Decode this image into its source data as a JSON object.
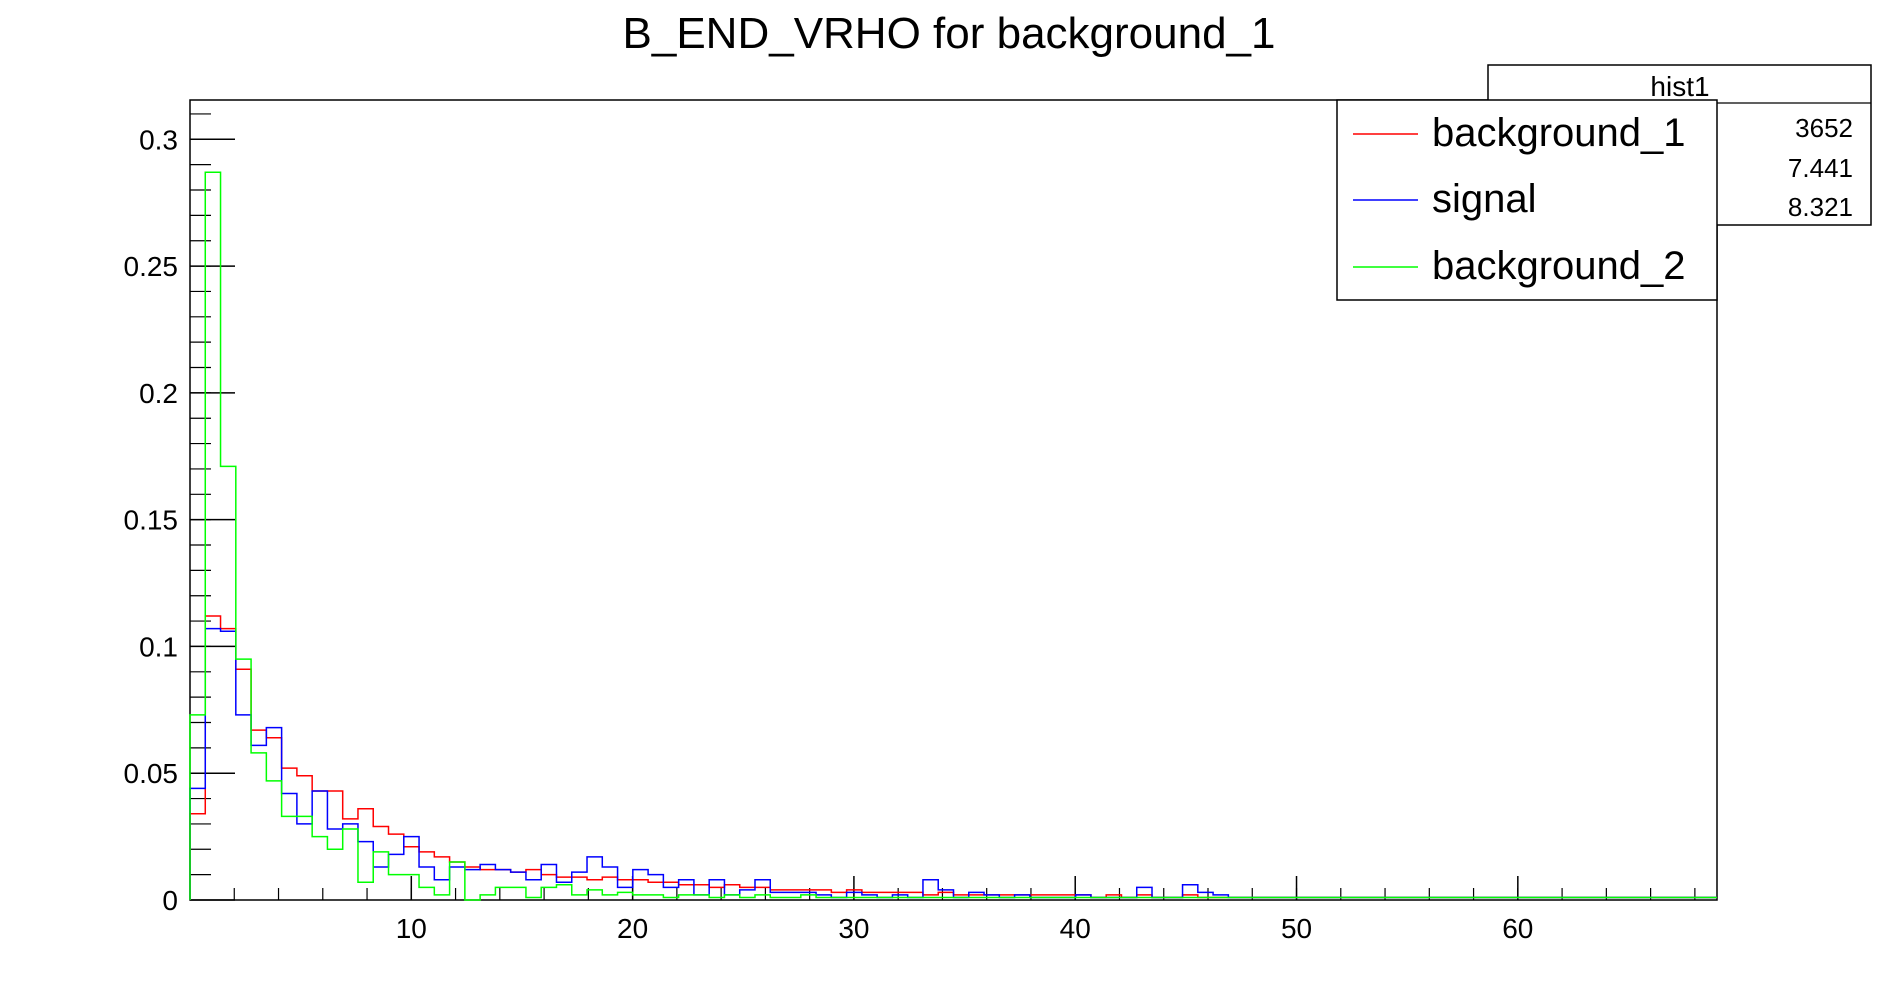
{
  "chart_data": {
    "type": "histogram",
    "title": "B_END_VRHO for background_1",
    "xlabel": "",
    "ylabel": "",
    "xlim": [
      0,
      69
    ],
    "ylim": [
      0,
      0.3155
    ],
    "x_ticks": [
      10,
      20,
      30,
      40,
      50,
      60
    ],
    "y_ticks": [
      0,
      0.05,
      0.1,
      0.15,
      0.2,
      0.25,
      0.3
    ],
    "bin_width": 0.69,
    "grid": false,
    "legend_position": "top-right",
    "colors": {
      "background_1": "#ff0000",
      "signal": "#0000ff",
      "background_2": "#00ff00"
    },
    "stats_box": {
      "title": "hist1",
      "values": [
        "3652",
        "7.441",
        "8.321"
      ]
    },
    "series": [
      {
        "name": "background_1",
        "color": "#ff0000",
        "values": [
          0.034,
          0.112,
          0.107,
          0.091,
          0.067,
          0.064,
          0.052,
          0.049,
          0.043,
          0.043,
          0.032,
          0.036,
          0.029,
          0.026,
          0.021,
          0.019,
          0.017,
          0.015,
          0.013,
          0.012,
          0.012,
          0.011,
          0.012,
          0.01,
          0.009,
          0.009,
          0.008,
          0.009,
          0.008,
          0.008,
          0.007,
          0.007,
          0.006,
          0.006,
          0.005,
          0.006,
          0.005,
          0.005,
          0.004,
          0.004,
          0.004,
          0.004,
          0.003,
          0.004,
          0.003,
          0.003,
          0.003,
          0.003,
          0.002,
          0.003,
          0.002,
          0.002,
          0.002,
          0.002,
          0.002,
          0.002,
          0.002,
          0.002,
          0.002,
          0.001,
          0.002,
          0.001,
          0.002,
          0.001,
          0.001,
          0.002,
          0.001,
          0.001,
          0.001,
          0.001,
          0.001,
          0.001,
          0.001,
          0.001,
          0.001,
          0.001,
          0.001,
          0.001,
          0.001,
          0.001,
          0.001,
          0.001,
          0.001,
          0.001,
          0.001,
          0.001,
          0.001,
          0.001,
          0.001,
          0.001,
          0.001,
          0.001,
          0.001,
          0.001,
          0.001,
          0.001,
          0.001,
          0.001,
          0.001,
          0.001
        ]
      },
      {
        "name": "signal",
        "color": "#0000ff",
        "values": [
          0.044,
          0.107,
          0.106,
          0.073,
          0.061,
          0.068,
          0.042,
          0.03,
          0.043,
          0.028,
          0.03,
          0.023,
          0.013,
          0.018,
          0.025,
          0.013,
          0.008,
          0.013,
          0.012,
          0.014,
          0.012,
          0.011,
          0.008,
          0.014,
          0.007,
          0.011,
          0.017,
          0.013,
          0.005,
          0.012,
          0.01,
          0.005,
          0.008,
          0.002,
          0.008,
          0.002,
          0.004,
          0.008,
          0.003,
          0.003,
          0.003,
          0.002,
          0.001,
          0.003,
          0.002,
          0.001,
          0.002,
          0.001,
          0.008,
          0.004,
          0.001,
          0.003,
          0.002,
          0.001,
          0.002,
          0.001,
          0.001,
          0.001,
          0.002,
          0.001,
          0.001,
          0.001,
          0.005,
          0.001,
          0.001,
          0.006,
          0.003,
          0.002,
          0.001,
          0.001,
          0.001,
          0.001,
          0.001,
          0.001,
          0.001,
          0.001,
          0.001,
          0.001,
          0.001,
          0.001,
          0.001,
          0.001,
          0.001,
          0.001,
          0.001,
          0.001,
          0.001,
          0.001,
          0.001,
          0.001,
          0.001,
          0.001,
          0.001,
          0.001,
          0.001,
          0.001,
          0.001,
          0.001,
          0.001,
          0.001
        ]
      },
      {
        "name": "background_2",
        "color": "#00ff00",
        "values": [
          0.073,
          0.287,
          0.171,
          0.095,
          0.058,
          0.047,
          0.033,
          0.033,
          0.025,
          0.02,
          0.028,
          0.007,
          0.019,
          0.01,
          0.01,
          0.005,
          0.002,
          0.015,
          0.0,
          0.002,
          0.005,
          0.005,
          0.001,
          0.005,
          0.006,
          0.002,
          0.004,
          0.002,
          0.003,
          0.002,
          0.002,
          0.001,
          0.002,
          0.002,
          0.001,
          0.002,
          0.001,
          0.002,
          0.001,
          0.001,
          0.002,
          0.001,
          0.001,
          0.001,
          0.001,
          0.001,
          0.001,
          0.001,
          0.001,
          0.001,
          0.001,
          0.001,
          0.001,
          0.001,
          0.001,
          0.001,
          0.001,
          0.001,
          0.001,
          0.001,
          0.001,
          0.001,
          0.001,
          0.001,
          0.001,
          0.001,
          0.001,
          0.001,
          0.001,
          0.001,
          0.001,
          0.001,
          0.001,
          0.001,
          0.001,
          0.001,
          0.001,
          0.001,
          0.001,
          0.001,
          0.001,
          0.001,
          0.001,
          0.001,
          0.001,
          0.001,
          0.001,
          0.001,
          0.001,
          0.001,
          0.001,
          0.001,
          0.001,
          0.001,
          0.001,
          0.001,
          0.001,
          0.001,
          0.001,
          0.001
        ]
      }
    ]
  }
}
